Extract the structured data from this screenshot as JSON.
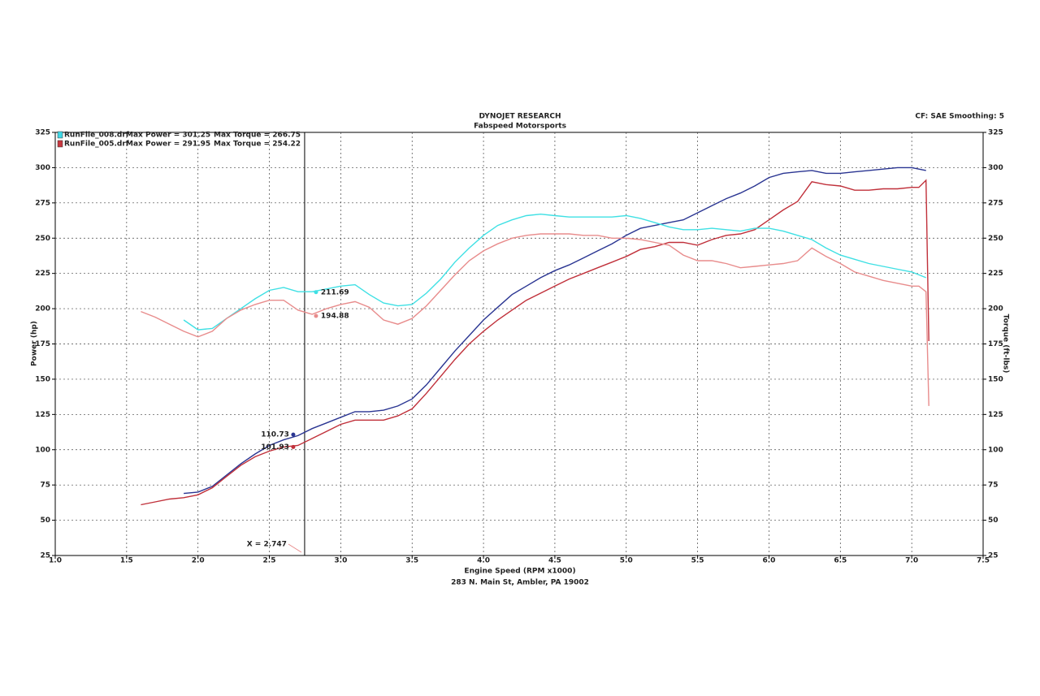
{
  "chart_data": {
    "type": "line",
    "title": "DYNOJET RESEARCH",
    "subtitle": "Fabspeed Motorsports",
    "settings_text": "CF: SAE  Smoothing: 5",
    "x_label": "Engine Speed (RPM x1000)",
    "footer": "283 N. Main St, Ambler, PA 19002",
    "y_label": "Power (hp)",
    "y2_label": "Torque (ft-lbs)",
    "legend": [
      {
        "name": "RunFile_008.drf",
        "power_text": "Max Power = 301.25",
        "torque_text": "Max Torque = 266.75",
        "color": "#3fd8e6"
      },
      {
        "name": "RunFile_005.drf",
        "power_text": "Max Power = 291.95",
        "torque_text": "Max Torque = 254.22",
        "color": "#c8383f"
      }
    ],
    "cursor": {
      "x": 2.747,
      "label": "X = 2.747"
    },
    "grid": true,
    "x": [
      1.6,
      1.7,
      1.8,
      1.9,
      2.0,
      2.1,
      2.2,
      2.3,
      2.4,
      2.5,
      2.6,
      2.7,
      2.8,
      2.9,
      3.0,
      3.1,
      3.2,
      3.3,
      3.4,
      3.5,
      3.6,
      3.7,
      3.8,
      3.9,
      4.0,
      4.1,
      4.2,
      4.3,
      4.4,
      4.5,
      4.6,
      4.7,
      4.8,
      4.9,
      5.0,
      5.1,
      5.2,
      5.3,
      5.4,
      5.5,
      5.6,
      5.7,
      5.8,
      5.9,
      6.0,
      6.1,
      6.2,
      6.3,
      6.4,
      6.5,
      6.6,
      6.7,
      6.8,
      6.9,
      7.0,
      7.05,
      7.1,
      7.12
    ],
    "series": [
      {
        "color": "#2a3592",
        "axis": "y",
        "cursor_value": 110.73,
        "label_side": "left",
        "values": [
          null,
          null,
          null,
          69,
          70,
          74,
          82,
          90,
          97,
          103,
          107,
          110,
          115,
          119,
          123,
          127,
          127,
          128,
          131,
          136,
          146,
          158,
          170,
          181,
          192,
          201,
          210,
          216,
          222,
          227,
          231,
          236,
          241,
          246,
          252,
          257,
          259,
          261,
          263,
          268,
          273,
          278,
          282,
          287,
          293,
          296,
          297,
          298,
          296,
          296,
          297,
          298,
          299,
          300,
          300,
          299,
          298,
          null
        ]
      },
      {
        "color": "#c0303a",
        "axis": "y",
        "cursor_value": 101.93,
        "label_side": "left",
        "values": [
          61,
          63,
          65,
          66,
          68,
          73,
          81,
          89,
          95,
          99,
          102,
          103,
          108,
          113,
          118,
          121,
          121,
          121,
          124,
          129,
          140,
          152,
          164,
          175,
          184,
          192,
          199,
          206,
          211,
          216,
          221,
          225,
          229,
          233,
          237,
          242,
          244,
          247,
          247,
          245,
          249,
          252,
          253,
          256,
          263,
          270,
          276,
          290,
          288,
          287,
          284,
          284,
          285,
          285,
          286,
          286,
          291,
          177
        ]
      },
      {
        "color": "#3fe0e4",
        "axis": "y2",
        "cursor_value": 211.69,
        "label_side": "right",
        "values": [
          null,
          null,
          null,
          192,
          185,
          186,
          193,
          200,
          207,
          213,
          215,
          212,
          212,
          214,
          216,
          217,
          210,
          204,
          202,
          203,
          211,
          221,
          233,
          243,
          252,
          259,
          263,
          266,
          267,
          266,
          265,
          265,
          265,
          265,
          266,
          264,
          261,
          258,
          256,
          256,
          257,
          256,
          255,
          257,
          257,
          255,
          252,
          249,
          243,
          238,
          235,
          232,
          230,
          228,
          226,
          224,
          222,
          null
        ]
      },
      {
        "color": "#e88c8c",
        "axis": "y2",
        "cursor_value": 194.88,
        "label_side": "right",
        "values": [
          198,
          194,
          189,
          184,
          180,
          184,
          193,
          199,
          203,
          206,
          206,
          199,
          196,
          200,
          203,
          205,
          201,
          192,
          189,
          193,
          202,
          213,
          224,
          234,
          241,
          246,
          250,
          252,
          253,
          253,
          253,
          252,
          252,
          250,
          250,
          249,
          247,
          245,
          238,
          234,
          234,
          232,
          229,
          230,
          231,
          232,
          234,
          243,
          237,
          232,
          226,
          223,
          220,
          218,
          216,
          216,
          212,
          131
        ]
      }
    ],
    "xlim": [
      1.0,
      7.5
    ],
    "xticks": [
      {
        "value": 1.0,
        "label": "1.0"
      },
      1.5,
      {
        "value": 2.0,
        "label": "2.0"
      },
      2.5,
      {
        "value": 3.0,
        "label": "3.0"
      },
      3.5,
      {
        "value": 4.0,
        "label": "4.0"
      },
      4.5,
      {
        "value": 5.0,
        "label": "5.0"
      },
      5.5,
      {
        "value": 6.0,
        "label": "6.0"
      },
      6.5,
      {
        "value": 7.0,
        "label": "7.0"
      },
      7.5
    ],
    "ylim": [
      25,
      325
    ],
    "yticks": [
      25,
      50,
      75,
      100,
      125,
      150,
      175,
      200,
      225,
      250,
      275,
      300,
      325
    ],
    "y2lim": [
      25,
      325
    ],
    "y2ticks": [
      25,
      50,
      75,
      100,
      125,
      150,
      175,
      200,
      225,
      250,
      275,
      300,
      325
    ]
  }
}
